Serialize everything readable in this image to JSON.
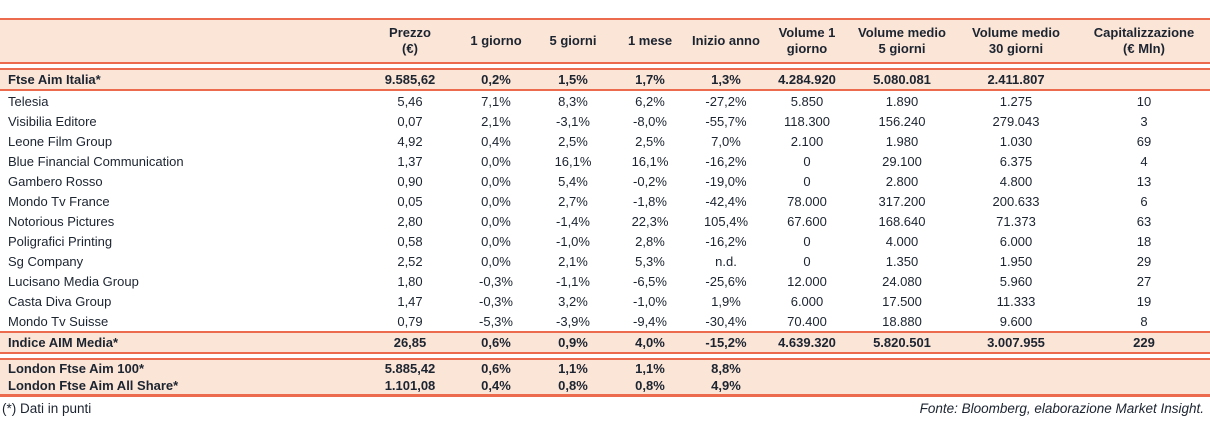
{
  "colors": {
    "accent": "#ec6a4e",
    "band_background": "#fbe5d7",
    "text": "#1c2430"
  },
  "table": {
    "columns": [
      {
        "id": "name",
        "label": ""
      },
      {
        "id": "prezzo",
        "label": "Prezzo\n(€)"
      },
      {
        "id": "1-giorno",
        "label": "1 giorno"
      },
      {
        "id": "5-giorni",
        "label": "5 giorni"
      },
      {
        "id": "1-mese",
        "label": "1 mese"
      },
      {
        "id": "inizio-anno",
        "label": "Inizio anno"
      },
      {
        "id": "volume-1-giorno",
        "label": "Volume 1\ngiorno"
      },
      {
        "id": "volume-medio-5-giorni",
        "label": "Volume medio\n5 giorni"
      },
      {
        "id": "volume-medio-30-giorni",
        "label": "Volume medio\n30 giorni"
      },
      {
        "id": "capitalizzazione",
        "label": "Capitalizzazione\n(€ Mln)"
      }
    ],
    "sections": [
      {
        "name": "main",
        "rows": [
          {
            "id": "ftse-aim-italia",
            "style": "band",
            "cells": [
              "Ftse Aim Italia*",
              "9.585,62",
              "0,2%",
              "1,5%",
              "1,7%",
              "1,3%",
              "4.284.920",
              "5.080.081",
              "2.411.807",
              ""
            ]
          },
          {
            "id": "telesia",
            "style": "plain",
            "cells": [
              "Telesia",
              "5,46",
              "7,1%",
              "8,3%",
              "6,2%",
              "-27,2%",
              "5.850",
              "1.890",
              "1.275",
              "10"
            ]
          },
          {
            "id": "visibilia-editore",
            "style": "plain",
            "cells": [
              "Visibilia Editore",
              "0,07",
              "2,1%",
              "-3,1%",
              "-8,0%",
              "-55,7%",
              "118.300",
              "156.240",
              "279.043",
              "3"
            ]
          },
          {
            "id": "leone-film-group",
            "style": "plain",
            "cells": [
              "Leone Film Group",
              "4,92",
              "0,4%",
              "2,5%",
              "2,5%",
              "7,0%",
              "2.100",
              "1.980",
              "1.030",
              "69"
            ]
          },
          {
            "id": "blue-financial-communication",
            "style": "plain",
            "cells": [
              "Blue Financial Communication",
              "1,37",
              "0,0%",
              "16,1%",
              "16,1%",
              "-16,2%",
              "0",
              "29.100",
              "6.375",
              "4"
            ]
          },
          {
            "id": "gambero-rosso",
            "style": "plain",
            "cells": [
              "Gambero Rosso",
              "0,90",
              "0,0%",
              "5,4%",
              "-0,2%",
              "-19,0%",
              "0",
              "2.800",
              "4.800",
              "13"
            ]
          },
          {
            "id": "mondo-tv-france",
            "style": "plain",
            "cells": [
              "Mondo Tv France",
              "0,05",
              "0,0%",
              "2,7%",
              "-1,8%",
              "-42,4%",
              "78.000",
              "317.200",
              "200.633",
              "6"
            ]
          },
          {
            "id": "notorious-pictures",
            "style": "plain",
            "cells": [
              "Notorious Pictures",
              "2,80",
              "0,0%",
              "-1,4%",
              "22,3%",
              "105,4%",
              "67.600",
              "168.640",
              "71.373",
              "63"
            ]
          },
          {
            "id": "poligrafici-printing",
            "style": "plain",
            "cells": [
              "Poligrafici Printing",
              "0,58",
              "0,0%",
              "-1,0%",
              "2,8%",
              "-16,2%",
              "0",
              "4.000",
              "6.000",
              "18"
            ]
          },
          {
            "id": "sg-company",
            "style": "plain",
            "cells": [
              "Sg Company",
              "2,52",
              "0,0%",
              "2,1%",
              "5,3%",
              "n.d.",
              "0",
              "1.350",
              "1.950",
              "29"
            ]
          },
          {
            "id": "lucisano-media-group",
            "style": "plain",
            "cells": [
              "Lucisano Media Group",
              "1,80",
              "-0,3%",
              "-1,1%",
              "-6,5%",
              "-25,6%",
              "12.000",
              "24.080",
              "5.960",
              "27"
            ]
          },
          {
            "id": "casta-diva-group",
            "style": "plain",
            "cells": [
              "Casta Diva Group",
              "1,47",
              "-0,3%",
              "3,2%",
              "-1,0%",
              "1,9%",
              "6.000",
              "17.500",
              "11.333",
              "19"
            ]
          },
          {
            "id": "mondo-tv-suisse",
            "style": "plain",
            "cells": [
              "Mondo Tv Suisse",
              "0,79",
              "-5,3%",
              "-3,9%",
              "-9,4%",
              "-30,4%",
              "70.400",
              "18.880",
              "9.600",
              "8"
            ]
          },
          {
            "id": "indice-aim-media",
            "style": "band",
            "cells": [
              "Indice AIM Media*",
              "26,85",
              "0,6%",
              "0,9%",
              "4,0%",
              "-15,2%",
              "4.639.320",
              "5.820.501",
              "3.007.955",
              "229"
            ]
          }
        ]
      },
      {
        "name": "london",
        "rows": [
          {
            "id": "london-ftse-aim-100",
            "style": "band",
            "cells": [
              "London Ftse Aim 100*",
              "5.885,42",
              "0,6%",
              "1,1%",
              "1,1%",
              "8,8%",
              "",
              "",
              "",
              ""
            ]
          },
          {
            "id": "london-ftse-aim-all-share",
            "style": "band",
            "cells": [
              "London Ftse Aim All Share*",
              "1.101,08",
              "0,4%",
              "0,8%",
              "0,8%",
              "4,9%",
              "",
              "",
              "",
              ""
            ]
          }
        ]
      }
    ]
  },
  "footer": {
    "left": "(*) Dati in punti",
    "right": "Fonte: Bloomberg, elaborazione Market Insight."
  }
}
